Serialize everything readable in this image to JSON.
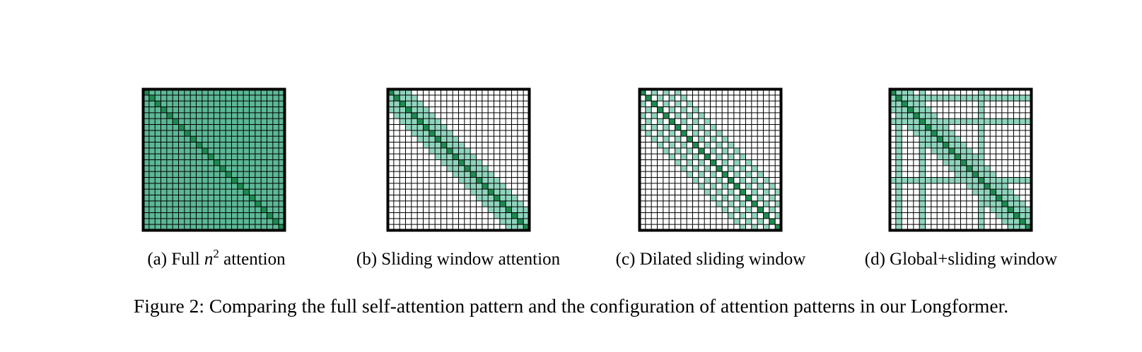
{
  "figure": {
    "caption": "Figure 2: Comparing the full self-attention pattern and the configuration of attention patterns in our Longformer.",
    "colors": {
      "diagonal": "#1e8a50",
      "attended": "#5cb896",
      "window": "#8fd4bd",
      "empty": "#ffffff",
      "grid": "#000000"
    },
    "grid_size": 24,
    "panels": [
      {
        "id": "a",
        "pattern": "full",
        "caption_prefix": "(a) Full ",
        "caption_var": "n",
        "caption_sup": "2",
        "caption_suffix": " attention"
      },
      {
        "id": "b",
        "pattern": "sliding",
        "window_half_width": 3,
        "caption": "(b) Sliding window attention"
      },
      {
        "id": "c",
        "pattern": "dilated",
        "window_half_width": 6,
        "dilation": 2,
        "caption": "(c) Dilated sliding window"
      },
      {
        "id": "d",
        "pattern": "global_sliding",
        "window_half_width": 3,
        "global_tokens": [
          1,
          5,
          15
        ],
        "caption": "(d) Global+sliding window"
      }
    ]
  }
}
